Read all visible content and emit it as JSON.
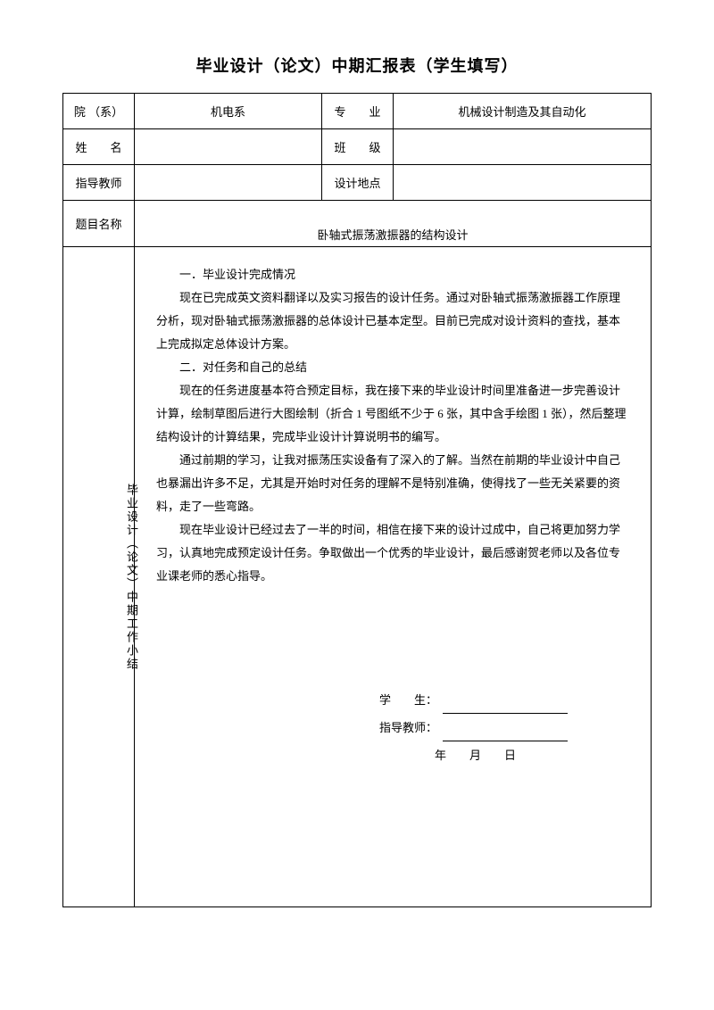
{
  "title": "毕业设计（论文）中期汇报表（学生填写）",
  "header": {
    "dept_label": "院 （系）",
    "dept_value": "机电系",
    "major_label": "专　　业",
    "major_value": "机械设计制造及其自动化",
    "name_label": "姓　　名",
    "name_value": "",
    "class_label": "班　　级",
    "class_value": "",
    "advisor_label": "指导教师",
    "advisor_value": "",
    "location_label": "设计地点",
    "location_value": "",
    "topic_label": "题目名称",
    "topic_value": "卧轴式振荡激振器的结构设计"
  },
  "summary": {
    "vertical_label": "毕业设计（论文）中期工作小结",
    "section1_head": "一．毕业设计完成情况",
    "section1_p1": "现在已完成英文资料翻译以及实习报告的设计任务。通过对卧轴式振荡激振器工作原理分析，现对卧轴式振荡激振器的总体设计已基本定型。目前已完成对设计资料的查找，基本上完成拟定总体设计方案。",
    "section2_head": "二．对任务和自己的总结",
    "section2_p1": "现在的任务进度基本符合预定目标，我在接下来的毕业设计时间里准备进一步完善设计计算，绘制草图后进行大图绘制（折合 1 号图纸不少于 6 张，其中含手绘图 1 张），然后整理结构设计的计算结果，完成毕业设计计算说明书的编写。",
    "section2_p2": "通过前期的学习，让我对振荡压实设备有了深入的了解。当然在前期的毕业设计中自己也暴漏出许多不足，尤其是开始时对任务的理解不是特别准确，使得找了一些无关紧要的资料，走了一些弯路。",
    "section2_p3": "现在毕业设计已经过去了一半的时间，相信在接下来的设计过成中，自己将更加努力学习，认真地完成预定设计任务。争取做出一个优秀的毕业设计，最后感谢贺老师以及各位专业课老师的悉心指导。"
  },
  "signature": {
    "student_label": "学　　生：",
    "advisor_label": "指导教师：",
    "date_y": "年",
    "date_m": "月",
    "date_d": "日"
  },
  "style": {
    "background": "#ffffff",
    "border_color": "#000000",
    "font_family": "SimSun",
    "title_fontsize": 18,
    "body_fontsize": 13
  }
}
